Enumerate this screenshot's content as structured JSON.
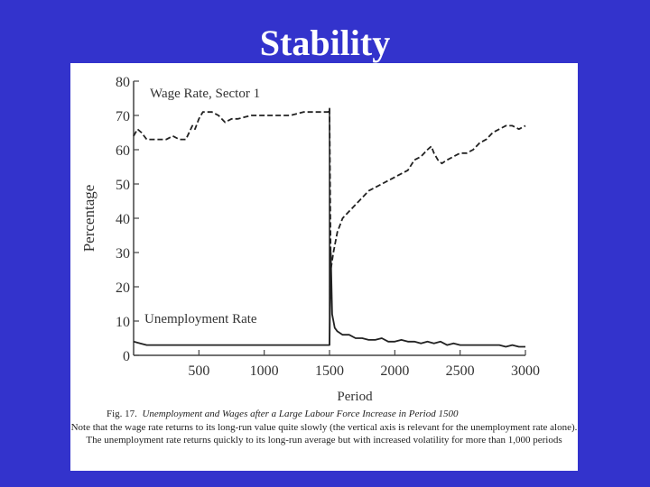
{
  "slide": {
    "title": "Stability"
  },
  "caption": {
    "fig_label": "Fig. 17.",
    "title": "Unemployment and Wages after a Large Labour Force Increase in Period 1500",
    "note": "Note that the wage rate returns to its long-run value quite slowly (the vertical axis is relevant for the unemployment rate alone). The unemployment rate returns quickly to its long-run average but with increased volatility for more than 1,000 periods"
  },
  "chart_data": {
    "type": "line",
    "title": "",
    "xlabel": "Period",
    "ylabel": "Percentage",
    "xlim": [
      0,
      3000
    ],
    "ylim": [
      0,
      80
    ],
    "xticks": [
      500,
      1000,
      1500,
      2000,
      2500,
      3000
    ],
    "yticks": [
      0,
      10,
      20,
      30,
      40,
      50,
      60,
      70,
      80
    ],
    "grid": false,
    "annotations": [
      {
        "text": "Wage Rate, Sector 1",
        "series": "wage"
      },
      {
        "text": "Unemployment Rate",
        "series": "unemployment"
      }
    ],
    "series": [
      {
        "id": "wage",
        "style": "dashed",
        "x": [
          0,
          30,
          60,
          100,
          150,
          200,
          250,
          300,
          350,
          400,
          450,
          470,
          500,
          530,
          560,
          600,
          650,
          700,
          750,
          800,
          900,
          1000,
          1100,
          1200,
          1300,
          1400,
          1490,
          1500,
          1510,
          1530,
          1560,
          1600,
          1650,
          1700,
          1750,
          1800,
          1850,
          1900,
          1950,
          2000,
          2050,
          2100,
          2150,
          2200,
          2250,
          2280,
          2300,
          2330,
          2360,
          2400,
          2450,
          2500,
          2550,
          2600,
          2650,
          2700,
          2750,
          2800,
          2850,
          2900,
          2950,
          3000
        ],
        "y": [
          64,
          66,
          65,
          63,
          63,
          63,
          63,
          64,
          63,
          63,
          67,
          66,
          69,
          71,
          71,
          71,
          70,
          68,
          69,
          69,
          70,
          70,
          70,
          70,
          71,
          71,
          71,
          72,
          25,
          30,
          36,
          40,
          42,
          44,
          46,
          48,
          49,
          50,
          51,
          52,
          53,
          54,
          57,
          58,
          60,
          61,
          59,
          57,
          56,
          57,
          58,
          59,
          59,
          60,
          62,
          63,
          65,
          66,
          67,
          67,
          66,
          67
        ]
      },
      {
        "id": "unemployment",
        "style": "solid",
        "x": [
          0,
          50,
          100,
          200,
          300,
          400,
          500,
          600,
          700,
          800,
          900,
          1000,
          1100,
          1200,
          1300,
          1400,
          1490,
          1500,
          1510,
          1520,
          1540,
          1560,
          1600,
          1650,
          1700,
          1750,
          1800,
          1850,
          1900,
          1950,
          2000,
          2050,
          2100,
          2150,
          2200,
          2250,
          2300,
          2350,
          2400,
          2450,
          2500,
          2550,
          2600,
          2650,
          2700,
          2750,
          2800,
          2850,
          2900,
          2950,
          3000
        ],
        "y": [
          4,
          3.5,
          3,
          3,
          3,
          3,
          3,
          3,
          3,
          3,
          3,
          3,
          3,
          3,
          3,
          3,
          3,
          3,
          30,
          12,
          8,
          7,
          6,
          6,
          5,
          5,
          4.5,
          4.5,
          5,
          4,
          4,
          4.5,
          4,
          4,
          3.5,
          4,
          3.5,
          4,
          3,
          3.5,
          3,
          3,
          3,
          3,
          3,
          3,
          3,
          2.5,
          3,
          2.5,
          2.5
        ]
      }
    ],
    "vline": {
      "x": 1500,
      "style": "solid"
    }
  }
}
